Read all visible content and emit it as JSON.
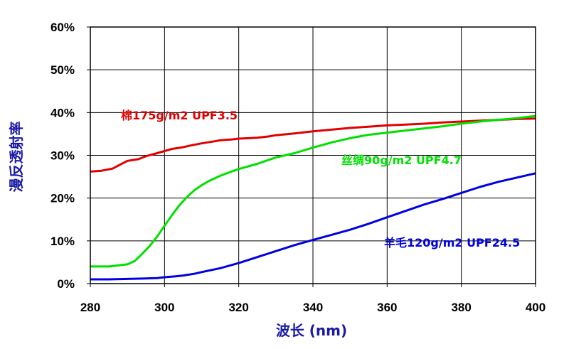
{
  "chart_data": {
    "type": "line",
    "xlabel": "波长 (nm)",
    "ylabel": "漫反透射率",
    "xlim": [
      280,
      400
    ],
    "ylim": [
      0,
      60
    ],
    "x_ticks": [
      280,
      300,
      320,
      340,
      360,
      380,
      400
    ],
    "y_ticks": [
      0,
      10,
      20,
      30,
      40,
      50,
      60
    ],
    "x_tick_labels": [
      "280",
      "300",
      "320",
      "340",
      "360",
      "380",
      "400"
    ],
    "y_tick_labels": [
      "0%",
      "10%",
      "20%",
      "30%",
      "40%",
      "50%",
      "60%"
    ],
    "grid": true,
    "axis_title_color": "#1a1aa6",
    "series": [
      {
        "name": "棉175g/m2 UPF3.5",
        "color": "#e00000",
        "x": [
          280,
          283,
          286,
          288,
          290,
          293,
          295,
          298,
          300,
          302,
          305,
          307,
          310,
          313,
          315,
          318,
          320,
          323,
          325,
          328,
          330,
          335,
          340,
          345,
          350,
          355,
          360,
          365,
          370,
          375,
          380,
          385,
          390,
          395,
          400
        ],
        "y": [
          26.2,
          26.4,
          26.9,
          27.8,
          28.7,
          29.1,
          29.8,
          30.5,
          31.0,
          31.5,
          31.9,
          32.3,
          32.8,
          33.2,
          33.5,
          33.7,
          33.9,
          34.0,
          34.1,
          34.4,
          34.7,
          35.1,
          35.6,
          36.0,
          36.4,
          36.7,
          37.0,
          37.2,
          37.4,
          37.7,
          37.9,
          38.1,
          38.3,
          38.5,
          38.6
        ]
      },
      {
        "name": "丝绸90g/m2 UPF4.7",
        "color": "#00e000",
        "x": [
          280,
          285,
          290,
          292,
          294,
          296,
          298,
          300,
          302,
          304,
          306,
          308,
          310,
          312,
          315,
          318,
          320,
          325,
          330,
          335,
          340,
          345,
          350,
          355,
          360,
          365,
          370,
          375,
          380,
          385,
          390,
          395,
          400
        ],
        "y": [
          4.0,
          4.0,
          4.5,
          5.3,
          7.0,
          8.8,
          11.0,
          13.5,
          16.0,
          18.3,
          20.2,
          21.8,
          23.0,
          24.0,
          25.2,
          26.2,
          26.8,
          28.0,
          29.5,
          30.5,
          31.8,
          33.0,
          34.0,
          34.8,
          35.3,
          35.8,
          36.3,
          36.8,
          37.4,
          37.9,
          38.3,
          38.7,
          39.2
        ]
      },
      {
        "name": "羊毛120g/m2 UPF24.5",
        "color": "#0000e0",
        "x": [
          280,
          285,
          290,
          295,
          298,
          300,
          303,
          305,
          308,
          310,
          315,
          320,
          325,
          330,
          335,
          340,
          345,
          350,
          355,
          360,
          365,
          370,
          375,
          380,
          385,
          390,
          395,
          400
        ],
        "y": [
          1.0,
          1.0,
          1.1,
          1.2,
          1.3,
          1.5,
          1.7,
          1.9,
          2.3,
          2.7,
          3.6,
          4.8,
          6.2,
          7.6,
          9.0,
          10.2,
          11.4,
          12.6,
          14.0,
          15.5,
          17.0,
          18.5,
          19.8,
          21.2,
          22.6,
          23.8,
          24.8,
          25.8
        ]
      }
    ]
  }
}
